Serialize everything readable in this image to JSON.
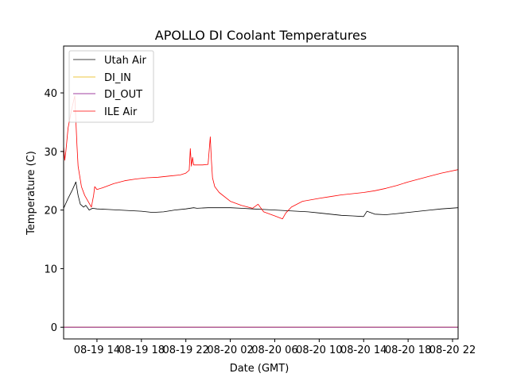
{
  "chart_data": {
    "type": "line",
    "title": "APOLLO DI Coolant Temperatures",
    "xlabel": "Date (GMT)",
    "ylabel": "Temperature (C)",
    "xlim": [
      11.0,
      46.5
    ],
    "ylim": [
      -2,
      48
    ],
    "x_unit": "hours since 08-19 00:00 GMT",
    "x_ticks": [
      {
        "value": 14,
        "label": "08-19 14"
      },
      {
        "value": 18,
        "label": "08-19 18"
      },
      {
        "value": 22,
        "label": "08-19 22"
      },
      {
        "value": 26,
        "label": "08-20 02"
      },
      {
        "value": 30,
        "label": "08-20 06"
      },
      {
        "value": 34,
        "label": "08-20 10"
      },
      {
        "value": 38,
        "label": "08-20 14"
      },
      {
        "value": 42,
        "label": "08-20 18"
      },
      {
        "value": 46,
        "label": "08-20 22"
      }
    ],
    "y_ticks": [
      {
        "value": 0,
        "label": "0"
      },
      {
        "value": 10,
        "label": "10"
      },
      {
        "value": 20,
        "label": "20"
      },
      {
        "value": 30,
        "label": "30"
      },
      {
        "value": 40,
        "label": "40"
      }
    ],
    "legend_position": "top-left",
    "series": [
      {
        "name": "Utah Air",
        "color": "#000000",
        "x": [
          11.0,
          11.4,
          11.8,
          12.1,
          12.3,
          12.5,
          12.8,
          13.0,
          13.3,
          13.6,
          14.0,
          15.0,
          16.0,
          17.0,
          18.0,
          19.0,
          20.0,
          21.0,
          22.0,
          22.7,
          23.0,
          24.0,
          25.0,
          26.0,
          27.0,
          28.0,
          29.0,
          30.0,
          31.0,
          32.0,
          33.0,
          34.0,
          35.0,
          36.0,
          37.0,
          38.0,
          38.3,
          39.0,
          40.0,
          41.0,
          42.0,
          43.0,
          44.0,
          45.0,
          46.5
        ],
        "values": [
          20.3,
          22.0,
          23.5,
          24.8,
          22.5,
          21.0,
          20.5,
          20.8,
          20.0,
          20.3,
          20.2,
          20.1,
          20.0,
          19.9,
          19.8,
          19.6,
          19.7,
          20.0,
          20.2,
          20.4,
          20.3,
          20.4,
          20.4,
          20.4,
          20.3,
          20.2,
          20.1,
          20.0,
          19.9,
          19.8,
          19.7,
          19.5,
          19.3,
          19.1,
          19.0,
          18.9,
          19.8,
          19.3,
          19.2,
          19.4,
          19.6,
          19.8,
          20.0,
          20.2,
          20.4
        ]
      },
      {
        "name": "DI_IN",
        "color": "#e8b400",
        "x": [
          11.0,
          46.5
        ],
        "values": [
          0,
          0
        ]
      },
      {
        "name": "DI_OUT",
        "color": "#800080",
        "x": [
          11.0,
          46.5
        ],
        "values": [
          0,
          0
        ]
      },
      {
        "name": "ILE Air",
        "color": "#ff0000",
        "x": [
          11.0,
          11.1,
          11.2,
          11.4,
          11.7,
          12.0,
          12.2,
          12.3,
          12.6,
          12.9,
          13.2,
          13.5,
          13.7,
          13.8,
          14.0,
          14.5,
          15.5,
          16.5,
          17.5,
          18.5,
          19.5,
          20.5,
          21.5,
          22.0,
          22.3,
          22.4,
          22.5,
          22.6,
          22.7,
          23.5,
          24.0,
          24.2,
          24.3,
          24.4,
          24.6,
          25.0,
          26.0,
          27.0,
          28.0,
          28.5,
          29.0,
          30.0,
          30.7,
          31.0,
          31.5,
          32.5,
          34.0,
          35.0,
          36.0,
          37.0,
          38.0,
          39.0,
          40.0,
          41.0,
          42.0,
          43.0,
          44.0,
          45.0,
          46.5
        ],
        "values": [
          31.0,
          28.5,
          30.0,
          34.0,
          37.0,
          39.5,
          31.0,
          27.5,
          24.0,
          22.5,
          21.5,
          20.5,
          22.5,
          24.0,
          23.5,
          23.8,
          24.5,
          25.0,
          25.3,
          25.5,
          25.6,
          25.8,
          26.0,
          26.3,
          26.8,
          30.5,
          27.5,
          29.0,
          27.7,
          27.7,
          27.8,
          32.5,
          28.5,
          25.5,
          24.0,
          23.0,
          21.5,
          20.8,
          20.3,
          21.0,
          19.7,
          19.0,
          18.5,
          19.5,
          20.5,
          21.5,
          22.0,
          22.3,
          22.6,
          22.8,
          23.0,
          23.3,
          23.7,
          24.2,
          24.8,
          25.3,
          25.8,
          26.3,
          26.9
        ]
      }
    ]
  }
}
